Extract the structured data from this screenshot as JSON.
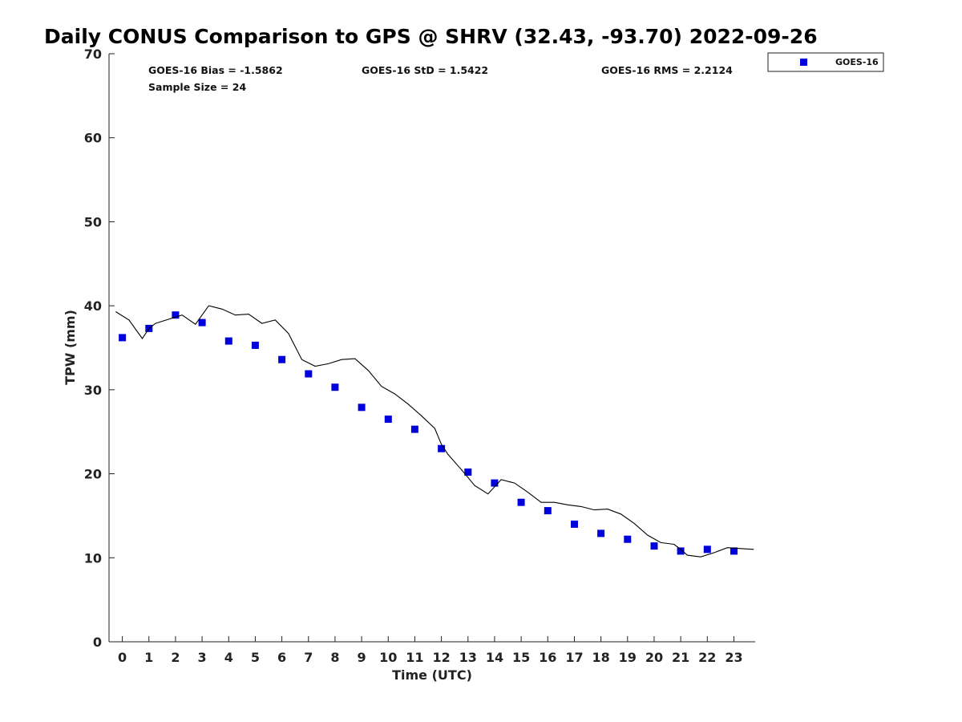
{
  "chart_data": {
    "type": "scatter",
    "title": "Daily CONUS Comparison to GPS @ SHRV (32.43, -93.70) 2022-09-26",
    "xlabel": "Time (UTC)",
    "ylabel": "TPW (mm)",
    "xlim": [
      -0.5,
      23.8
    ],
    "ylim": [
      0,
      70
    ],
    "x_ticks": [
      "0",
      "1",
      "2",
      "3",
      "4",
      "5",
      "6",
      "7",
      "8",
      "9",
      "10",
      "11",
      "12",
      "13",
      "14",
      "15",
      "16",
      "17",
      "18",
      "19",
      "20",
      "21",
      "22",
      "23"
    ],
    "y_ticks": [
      "0",
      "10",
      "20",
      "30",
      "40",
      "50",
      "60",
      "70"
    ],
    "grid": false,
    "legend_position": "outside-top-right",
    "stats": {
      "bias": "GOES-16 Bias = -1.5862",
      "std": "GOES-16 StD = 1.5422",
      "rms": "GOES-16 RMS = 2.2124",
      "sample": "Sample Size = 24"
    },
    "series": [
      {
        "name": "GOES-16",
        "kind": "scatter",
        "color": "#0000dd",
        "x": [
          0,
          1,
          2,
          3,
          4,
          5,
          6,
          7,
          8,
          9,
          10,
          11,
          12,
          13,
          14,
          15,
          16,
          17,
          18,
          19,
          20,
          21,
          22,
          23
        ],
        "y": [
          36.2,
          37.3,
          38.9,
          38.0,
          35.8,
          35.3,
          33.6,
          31.9,
          30.3,
          27.9,
          26.5,
          25.3,
          23.0,
          20.2,
          18.9,
          16.6,
          15.6,
          14.0,
          12.9,
          12.2,
          11.4,
          10.8,
          11.0,
          10.8
        ]
      },
      {
        "kind": "line",
        "color": "#000000",
        "x": [
          -0.25,
          0.25,
          0.75,
          1.0,
          1.25,
          1.75,
          2.25,
          2.75,
          3.25,
          3.75,
          4.25,
          4.75,
          5.25,
          5.75,
          6.25,
          6.75,
          7.25,
          7.75,
          8.25,
          8.75,
          9.25,
          9.75,
          10.25,
          10.75,
          11.25,
          11.75,
          12.0,
          12.25,
          12.75,
          13.25,
          13.75,
          14.25,
          14.75,
          15.25,
          15.75,
          16.25,
          16.75,
          17.25,
          17.75,
          18.25,
          18.75,
          19.25,
          19.75,
          20.25,
          20.75,
          21.0,
          21.25,
          21.75,
          22.25,
          22.75,
          23.25,
          23.75
        ],
        "y": [
          39.3,
          38.3,
          36.1,
          37.3,
          37.9,
          38.4,
          38.9,
          37.8,
          40.0,
          39.6,
          38.9,
          39.0,
          37.9,
          38.3,
          36.7,
          33.6,
          32.8,
          33.1,
          33.6,
          33.7,
          32.3,
          30.4,
          29.5,
          28.3,
          26.9,
          25.4,
          23.5,
          22.3,
          20.5,
          18.6,
          17.6,
          19.3,
          18.9,
          17.8,
          16.6,
          16.6,
          16.3,
          16.1,
          15.7,
          15.8,
          15.2,
          14.1,
          12.7,
          11.8,
          11.6,
          11.0,
          10.3,
          10.1,
          10.6,
          11.2,
          11.1,
          11.0
        ]
      }
    ]
  }
}
